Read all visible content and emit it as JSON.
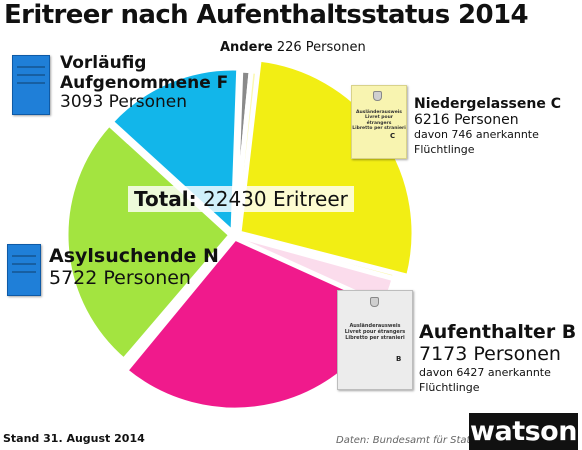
{
  "title": "Eritreer nach Aufenthaltsstatus 2014",
  "chart_data": {
    "type": "pie",
    "title": "Eritreer nach Aufenthaltsstatus 2014",
    "total": 22430,
    "slices": [
      {
        "name": "Andere",
        "value": 226,
        "color": "#8a8a8a"
      },
      {
        "name": "Niedergelassene C",
        "value": 6216,
        "color": "#f2ee14"
      },
      {
        "name": "Aufenthalter B",
        "value": 7173,
        "color": "#f01a8c"
      },
      {
        "name": "Asylsuchende N",
        "value": 5722,
        "color": "#a3e440"
      },
      {
        "name": "Vorläufig Aufgenommene F",
        "value": 3093,
        "color": "#12b6ea"
      }
    ],
    "light_colors": {
      "Niedergelassene C": "#fbf8b2",
      "Aufenthalter B": "#fbdcec"
    }
  },
  "labels": {
    "andere": {
      "name": "Andere",
      "count": "226 Personen"
    },
    "niedergelassene": {
      "name": "Niedergelassene C",
      "count": "6216 Personen",
      "note1": "davon 746 anerkannte",
      "note2": "Flüchtlinge"
    },
    "aufenthalter": {
      "name": "Aufenthalter B",
      "count": "7173 Personen",
      "note1": "davon 6427 anerkannte",
      "note2": "Flüchtlinge"
    },
    "asyl": {
      "name": "Asylsuchende N",
      "count": "5722 Personen"
    },
    "vorlaeufig": {
      "name1": "Vorläufig",
      "name2": "Aufgenommene F",
      "count": "3093 Personen"
    }
  },
  "total_label": {
    "bold": "Total:",
    "text": "22430 Eritreer"
  },
  "docs": {
    "c": {
      "line1": "Ausländerausweis",
      "line2": "Livret pour étrangers",
      "line3": "Libretto per stranieri",
      "letter": "C"
    },
    "b": {
      "line1": "Ausländerausweis",
      "line2": "Livret pour étrangers",
      "line3": "Libretto per stranieri",
      "letter": "B"
    }
  },
  "footer": "Stand 31. August 2014",
  "source": "Daten: Bundesamt für Statisik",
  "logo": "watson"
}
